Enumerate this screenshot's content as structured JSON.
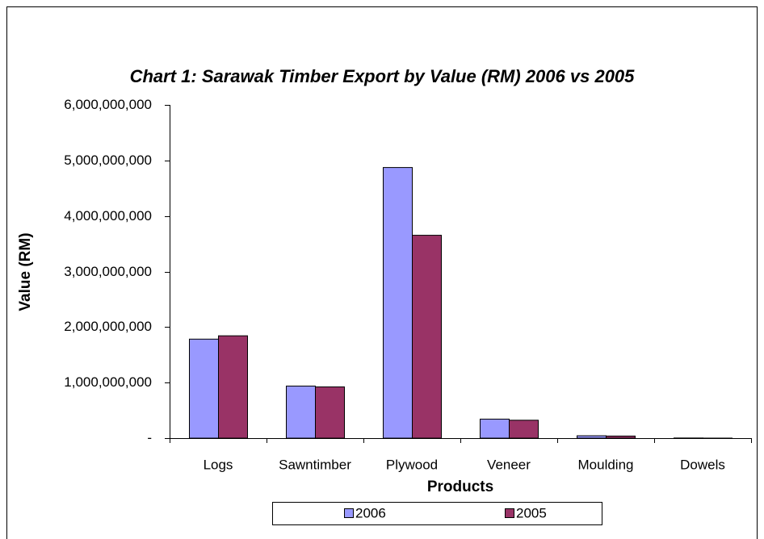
{
  "chart_data": {
    "type": "bar",
    "title": "Chart 1: Sarawak Timber Export by Value (RM) 2006 vs 2005",
    "x_label": "Products",
    "y_label": "Value (RM)",
    "categories": [
      "Logs",
      "Sawntimber",
      "Plywood",
      "Veneer",
      "Moulding",
      "Dowels"
    ],
    "series": [
      {
        "name": "2006",
        "color": "#9999ff",
        "values": [
          1790000000,
          945000000,
          4880000000,
          350000000,
          50000000,
          10000000
        ]
      },
      {
        "name": "2005",
        "color": "#993366",
        "values": [
          1850000000,
          930000000,
          3660000000,
          330000000,
          45000000,
          8000000
        ]
      }
    ],
    "ylim": [
      0,
      6000000000
    ],
    "yticks": [
      {
        "value": 0,
        "label": "-"
      },
      {
        "value": 1000000000,
        "label": "1,000,000,000"
      },
      {
        "value": 2000000000,
        "label": "2,000,000,000"
      },
      {
        "value": 3000000000,
        "label": "3,000,000,000"
      },
      {
        "value": 4000000000,
        "label": "4,000,000,000"
      },
      {
        "value": 5000000000,
        "label": "5,000,000,000"
      },
      {
        "value": 6000000000,
        "label": "6,000,000,000"
      }
    ],
    "legend": "bottom"
  }
}
